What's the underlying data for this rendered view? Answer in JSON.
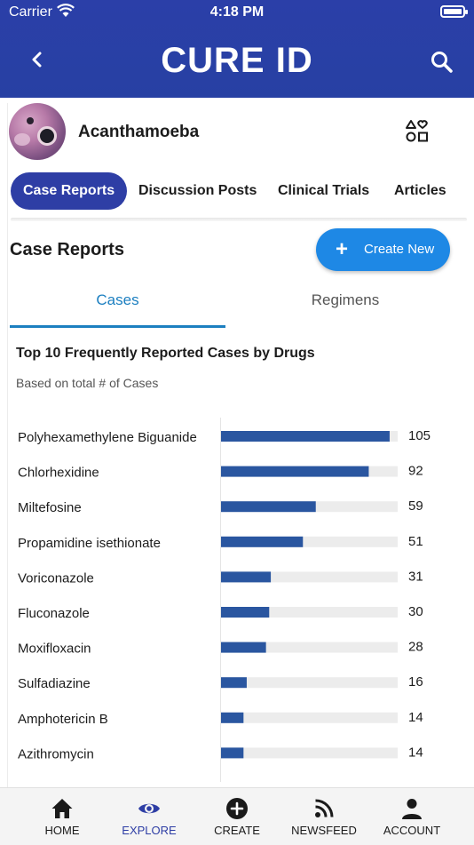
{
  "status_bar": {
    "carrier": "Carrier",
    "time": "4:18 PM"
  },
  "header": {
    "title": "CURE ID",
    "back_icon": "chevron-left-icon",
    "search_icon": "search-icon"
  },
  "condition": {
    "name": "Acanthamoeba",
    "shapes_icon": "shapes-heart-icon"
  },
  "tabs": [
    {
      "label": "Case Reports",
      "active": true
    },
    {
      "label": "Discussion Posts",
      "active": false
    },
    {
      "label": "Clinical Trials",
      "active": false
    },
    {
      "label": "Articles",
      "active": false
    }
  ],
  "section": {
    "title": "Case Reports",
    "create_label": "Create New"
  },
  "subtabs": {
    "cases": "Cases",
    "regimens": "Regimens",
    "active": "Cases"
  },
  "colors": {
    "brand": "#2e3ea5",
    "accent": "#1e88e5",
    "bar": "#2a56a0",
    "track": "#ececec"
  },
  "chart_data": {
    "type": "bar",
    "orientation": "horizontal",
    "title": "Top 10 Frequently Reported Cases by Drugs",
    "subtitle": "Based on total # of Cases",
    "categories": [
      "Polyhexamethylene Biguanide",
      "Chlorhexidine",
      "Miltefosine",
      "Propamidine isethionate",
      "Voriconazole",
      "Fluconazole",
      "Moxifloxacin",
      "Sulfadiazine",
      "Amphotericin B",
      "Azithromycin"
    ],
    "values": [
      105,
      92,
      59,
      51,
      31,
      30,
      28,
      16,
      14,
      14
    ],
    "xlim": [
      0,
      110
    ],
    "grid": false
  },
  "bottom_nav": [
    {
      "label": "HOME",
      "icon": "home-icon",
      "active": false
    },
    {
      "label": "EXPLORE",
      "icon": "eye-icon",
      "active": true
    },
    {
      "label": "CREATE",
      "icon": "plus-circle-icon",
      "active": false
    },
    {
      "label": "NEWSFEED",
      "icon": "rss-icon",
      "active": false
    },
    {
      "label": "ACCOUNT",
      "icon": "person-icon",
      "active": false
    }
  ]
}
